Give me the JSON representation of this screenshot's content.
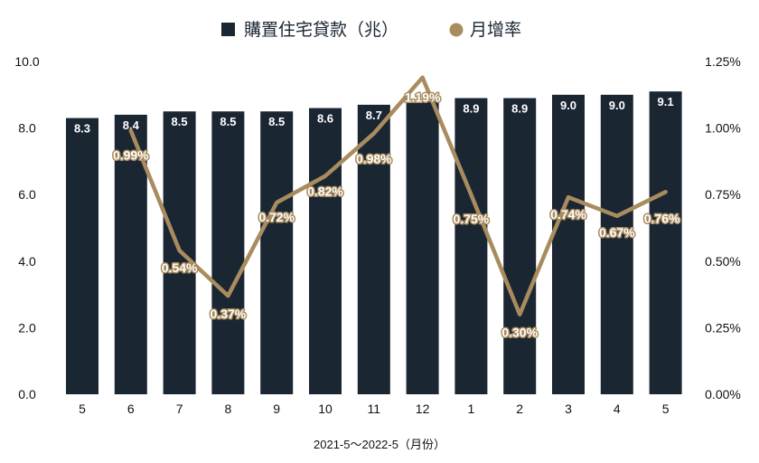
{
  "colors": {
    "bar": "#1b2633",
    "line": "#a98c5e",
    "text": "#111111"
  },
  "chart_data": {
    "type": "bar+line",
    "categories": [
      "5",
      "6",
      "7",
      "8",
      "9",
      "10",
      "11",
      "12",
      "1",
      "2",
      "3",
      "4",
      "5"
    ],
    "series": [
      {
        "name": "購置住宅貸款（兆）",
        "type": "bar",
        "axis": "left",
        "values": [
          8.3,
          8.4,
          8.5,
          8.5,
          8.5,
          8.6,
          8.7,
          8.8,
          8.9,
          8.9,
          9.0,
          9.0,
          9.1
        ],
        "labels": [
          "8.3",
          "8.4",
          "8.5",
          "8.5",
          "8.5",
          "8.6",
          "8.7",
          "",
          "8.9",
          "8.9",
          "9.0",
          "9.0",
          "9.1"
        ]
      },
      {
        "name": "月增率",
        "type": "line",
        "axis": "right",
        "values": [
          null,
          0.99,
          0.54,
          0.37,
          0.72,
          0.82,
          0.98,
          1.19,
          0.75,
          0.3,
          0.74,
          0.67,
          0.76
        ],
        "labels": [
          "",
          "0.99%",
          "0.54%",
          "0.37%",
          "0.72%",
          "0.82%",
          "0.98%",
          "1.19%",
          "0.75%",
          "0.30%",
          "0.74%",
          "0.67%",
          "0.76%"
        ]
      }
    ],
    "y_left": {
      "ylim": [
        0,
        10
      ],
      "ticks": [
        "0.0",
        "2.0",
        "4.0",
        "6.0",
        "8.0",
        "10.0"
      ]
    },
    "y_right": {
      "ylim": [
        0,
        1.25
      ],
      "ticks": [
        "0.00%",
        "0.25%",
        "0.50%",
        "0.75%",
        "1.00%",
        "1.25%"
      ]
    },
    "xlabel": "2021-5～2022-5（月份）",
    "legend": {
      "position": "top-center",
      "items": [
        "購置住宅貸款（兆）",
        "月增率"
      ]
    },
    "grid": false
  }
}
